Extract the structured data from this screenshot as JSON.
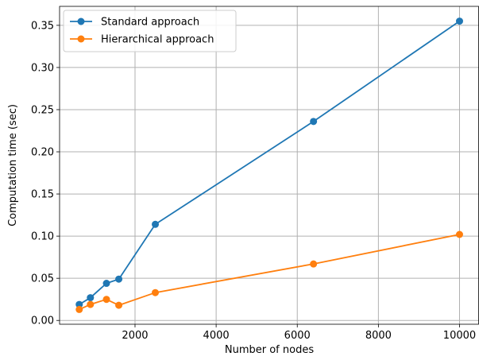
{
  "chart_data": {
    "type": "line",
    "title": "",
    "xlabel": "Number of nodes",
    "ylabel": "Computation time (sec)",
    "xlim": [
      140,
      10480
    ],
    "ylim": [
      -0.0045,
      0.3725
    ],
    "xticks": [
      2000,
      4000,
      6000,
      8000,
      10000
    ],
    "yticks": [
      0.0,
      0.05,
      0.1,
      0.15,
      0.2,
      0.25,
      0.3,
      0.35
    ],
    "xtick_labels": [
      "2000",
      "4000",
      "6000",
      "8000",
      "10000"
    ],
    "ytick_labels": [
      "0.00",
      "0.05",
      "0.10",
      "0.15",
      "0.20",
      "0.25",
      "0.30",
      "0.35"
    ],
    "grid": true,
    "legend_position": "top-left",
    "series": [
      {
        "name": "Standard approach",
        "color": "#1f77b4",
        "x": [
          625,
          900,
          1296,
          1600,
          2500,
          6400,
          10000
        ],
        "y": [
          0.019,
          0.027,
          0.044,
          0.049,
          0.114,
          0.236,
          0.355
        ]
      },
      {
        "name": "Hierarchical approach",
        "color": "#ff7f0e",
        "x": [
          625,
          900,
          1296,
          1600,
          2500,
          6400,
          10000
        ],
        "y": [
          0.013,
          0.019,
          0.025,
          0.018,
          0.033,
          0.067,
          0.102
        ]
      }
    ]
  }
}
